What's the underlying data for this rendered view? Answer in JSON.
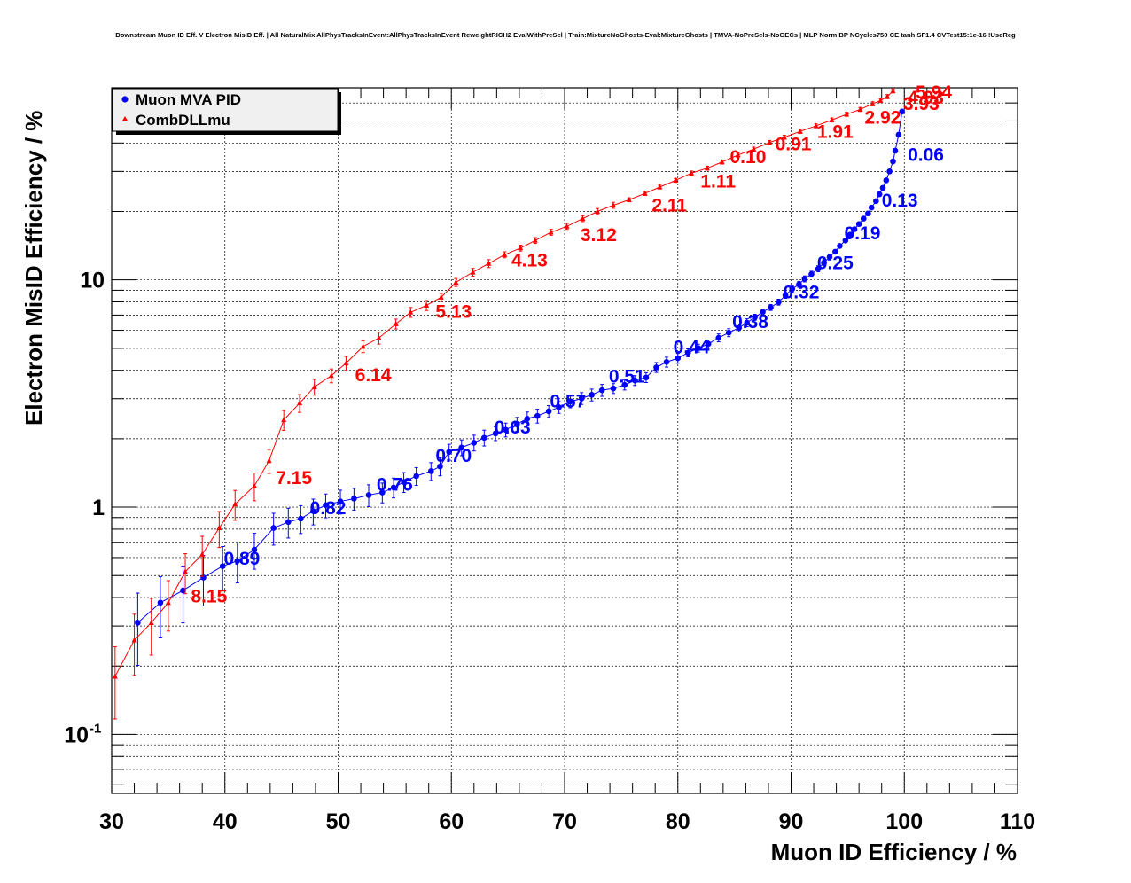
{
  "title": "Downstream Muon ID Eff. V Electron MisID Eff. | All NaturalMix AllPhysTracksInEvent:AllPhysTracksInEvent ReweightRICH2 EvalWithPreSel | Train:MixtureNoGhosts-Eval:MixtureGhosts | TMVA-NoPreSels-NoGECs | MLP Norm BP NCycles750 CE tanh SF1.4 CVTest15:1e-16 !UseReg",
  "chart_data": {
    "type": "line",
    "xlabel": "Muon ID Efficiency / %",
    "ylabel": "Electron MisID Efficiency / %",
    "xlim": [
      30,
      110
    ],
    "ylim": [
      0.055,
      70
    ],
    "yscale": "log",
    "grid": true,
    "legend_position": "top-left",
    "x_ticks": [
      "30",
      "40",
      "50",
      "60",
      "70",
      "80",
      "90",
      "100",
      "110"
    ],
    "y_ticks": [
      {
        "value": 0.1,
        "base": "10",
        "exp": "-1"
      },
      {
        "value": 1,
        "base": "1",
        "exp": ""
      },
      {
        "value": 10,
        "base": "10",
        "exp": ""
      }
    ],
    "series": [
      {
        "name": "Muon MVA PID",
        "color": "#0000ff",
        "marker": "circle",
        "points": [
          [
            32.3,
            0.31
          ],
          [
            34.3,
            0.38
          ],
          [
            36.3,
            0.43
          ],
          [
            38.1,
            0.49
          ],
          [
            39.8,
            0.55
          ],
          [
            41.1,
            0.58
          ],
          [
            42.6,
            0.65
          ],
          [
            44.3,
            0.81
          ],
          [
            45.6,
            0.86
          ],
          [
            46.7,
            0.89
          ],
          [
            47.8,
            0.96
          ],
          [
            48.9,
            1.02
          ],
          [
            50.2,
            1.06
          ],
          [
            51.4,
            1.09
          ],
          [
            52.7,
            1.13
          ],
          [
            53.9,
            1.16
          ],
          [
            54.9,
            1.22
          ],
          [
            55.8,
            1.29
          ],
          [
            56.9,
            1.37
          ],
          [
            58.2,
            1.44
          ],
          [
            59.0,
            1.51
          ],
          [
            59.8,
            1.75
          ],
          [
            60.9,
            1.83
          ],
          [
            62.0,
            1.92
          ],
          [
            62.9,
            2.02
          ],
          [
            63.9,
            2.11
          ],
          [
            64.8,
            2.19
          ],
          [
            65.8,
            2.32
          ],
          [
            66.7,
            2.45
          ],
          [
            67.6,
            2.52
          ],
          [
            68.6,
            2.64
          ],
          [
            69.5,
            2.75
          ],
          [
            70.5,
            2.91
          ],
          [
            71.5,
            3.01
          ],
          [
            72.4,
            3.12
          ],
          [
            73.3,
            3.27
          ],
          [
            74.3,
            3.33
          ],
          [
            75.3,
            3.45
          ],
          [
            76.2,
            3.61
          ],
          [
            77.2,
            3.72
          ],
          [
            78.1,
            4.12
          ],
          [
            79.0,
            4.35
          ],
          [
            80.0,
            4.52
          ],
          [
            80.9,
            4.78
          ],
          [
            81.8,
            5.01
          ],
          [
            82.7,
            5.23
          ],
          [
            83.6,
            5.56
          ],
          [
            84.5,
            5.86
          ],
          [
            85.4,
            6.15
          ],
          [
            86.1,
            6.48
          ],
          [
            86.8,
            6.85
          ],
          [
            87.5,
            7.22
          ],
          [
            88.2,
            7.56
          ],
          [
            88.9,
            7.98
          ],
          [
            89.5,
            8.55
          ],
          [
            90.1,
            9.12
          ],
          [
            90.7,
            9.56
          ],
          [
            91.2,
            10.1
          ],
          [
            91.8,
            10.6
          ],
          [
            92.4,
            11.2
          ],
          [
            92.9,
            11.9
          ],
          [
            93.4,
            12.6
          ],
          [
            93.9,
            13.3
          ],
          [
            94.3,
            14.1
          ],
          [
            94.8,
            14.9
          ],
          [
            95.2,
            15.8
          ],
          [
            95.6,
            16.7
          ],
          [
            96.0,
            17.6
          ],
          [
            96.4,
            18.6
          ],
          [
            96.8,
            19.6
          ],
          [
            97.1,
            20.8
          ],
          [
            97.5,
            22.2
          ],
          [
            97.8,
            23.8
          ],
          [
            98.1,
            25.4
          ],
          [
            98.4,
            27.4
          ],
          [
            98.7,
            30.0
          ],
          [
            99.0,
            33.2
          ],
          [
            99.2,
            37.0
          ],
          [
            99.5,
            43.5
          ],
          [
            99.8,
            55.0
          ]
        ],
        "rel_errors": [
          0.35,
          0.3,
          0.28,
          0.25,
          0.22,
          0.2,
          0.18,
          0.16,
          0.15,
          0.14,
          0.13,
          0.12,
          0.12,
          0.11,
          0.11,
          0.1,
          0.1,
          0.1,
          0.09,
          0.09,
          0.09,
          0.08,
          0.08,
          0.08,
          0.08,
          0.07,
          0.07,
          0.07,
          0.07,
          0.07,
          0.06,
          0.06,
          0.06,
          0.06,
          0.06,
          0.06,
          0.05,
          0.05,
          0.05,
          0.05,
          0.05,
          0.05,
          0.05,
          0.04,
          0.04,
          0.04,
          0.04,
          0.04,
          0.04,
          0.04,
          0.03,
          0.03,
          0.03,
          0.03,
          0.03,
          0.03,
          0.03,
          0.03,
          0.03,
          0.03,
          0.03,
          0.03,
          0.02,
          0.02,
          0.02,
          0.02,
          0.02,
          0.02,
          0.02,
          0.02,
          0.02,
          0.02,
          0.02,
          0.02,
          0.02,
          0.02,
          0.02,
          0.02,
          0.02,
          0.02
        ],
        "annotations": [
          {
            "x": 100.3,
            "y": 35.8,
            "text": "0.06"
          },
          {
            "x": 98.0,
            "y": 22.6,
            "text": "0.13"
          },
          {
            "x": 94.7,
            "y": 16.2,
            "text": "0.19"
          },
          {
            "x": 92.3,
            "y": 12.0,
            "text": "0.25"
          },
          {
            "x": 89.3,
            "y": 8.9,
            "text": "0.32"
          },
          {
            "x": 84.8,
            "y": 6.6,
            "text": "0.38"
          },
          {
            "x": 79.6,
            "y": 5.1,
            "text": "0.44"
          },
          {
            "x": 73.9,
            "y": 3.8,
            "text": "0.51"
          },
          {
            "x": 68.7,
            "y": 2.95,
            "text": "0.57"
          },
          {
            "x": 63.8,
            "y": 2.27,
            "text": "0.63"
          },
          {
            "x": 58.6,
            "y": 1.7,
            "text": "0.70"
          },
          {
            "x": 53.4,
            "y": 1.27,
            "text": "0.76"
          },
          {
            "x": 47.5,
            "y": 1.0,
            "text": "0.82"
          },
          {
            "x": 39.9,
            "y": 0.6,
            "text": "0.89"
          }
        ]
      },
      {
        "name": "CombDLLmu",
        "color": "#ff0000",
        "marker": "triangle",
        "points": [
          [
            30.3,
            0.18
          ],
          [
            32.0,
            0.26
          ],
          [
            33.5,
            0.31
          ],
          [
            35.0,
            0.38
          ],
          [
            36.5,
            0.52
          ],
          [
            38.0,
            0.62
          ],
          [
            39.5,
            0.81
          ],
          [
            40.9,
            1.03
          ],
          [
            42.6,
            1.24
          ],
          [
            43.9,
            1.6
          ],
          [
            45.2,
            2.42
          ],
          [
            46.6,
            2.87
          ],
          [
            47.9,
            3.38
          ],
          [
            49.4,
            3.79
          ],
          [
            50.7,
            4.3
          ],
          [
            52.2,
            5.09
          ],
          [
            53.6,
            5.55
          ],
          [
            55.1,
            6.4
          ],
          [
            56.4,
            7.2
          ],
          [
            57.8,
            7.72
          ],
          [
            59.1,
            8.38
          ],
          [
            60.4,
            9.75
          ],
          [
            61.9,
            10.8
          ],
          [
            63.3,
            11.8
          ],
          [
            64.7,
            12.9
          ],
          [
            66.1,
            13.8
          ],
          [
            67.4,
            14.9
          ],
          [
            68.8,
            16.2
          ],
          [
            70.2,
            17.2
          ],
          [
            71.6,
            18.6
          ],
          [
            72.9,
            20.0
          ],
          [
            74.3,
            21.3
          ],
          [
            75.7,
            22.5
          ],
          [
            77.1,
            24.0
          ],
          [
            78.4,
            25.6
          ],
          [
            79.8,
            27.4
          ],
          [
            81.2,
            29.5
          ],
          [
            82.6,
            31.0
          ],
          [
            83.9,
            33.0
          ],
          [
            85.3,
            35.4
          ],
          [
            86.7,
            37.6
          ],
          [
            88.1,
            40.2
          ],
          [
            89.4,
            42.4
          ],
          [
            90.8,
            45.0
          ],
          [
            92.2,
            47.6
          ],
          [
            93.6,
            50.5
          ],
          [
            94.9,
            53.5
          ],
          [
            96.1,
            56.2
          ],
          [
            97.2,
            59.5
          ],
          [
            97.9,
            61.5
          ],
          [
            98.5,
            64.0
          ],
          [
            99.0,
            67.8
          ]
        ],
        "rel_errors": [
          0.35,
          0.3,
          0.28,
          0.25,
          0.2,
          0.2,
          0.18,
          0.15,
          0.14,
          0.12,
          0.1,
          0.09,
          0.08,
          0.07,
          0.07,
          0.06,
          0.06,
          0.05,
          0.05,
          0.05,
          0.04,
          0.04,
          0.04,
          0.04,
          0.03,
          0.03,
          0.03,
          0.03,
          0.03,
          0.03,
          0.03,
          0.03,
          0.02,
          0.02,
          0.02,
          0.02,
          0.02,
          0.02,
          0.02,
          0.02,
          0.02,
          0.02,
          0.02,
          0.02,
          0.02,
          0.02,
          0.02,
          0.02,
          0.02,
          0.02,
          0.02,
          0.02
        ],
        "annotations": [
          {
            "x": 101.0,
            "y": 67.5,
            "text": "5.94"
          },
          {
            "x": 100.3,
            "y": 64.1,
            "text": "4.93"
          },
          {
            "x": 99.9,
            "y": 60.2,
            "text": "3.93"
          },
          {
            "x": 96.5,
            "y": 52.2,
            "text": "2.92"
          },
          {
            "x": 92.3,
            "y": 45.2,
            "text": "1.91"
          },
          {
            "x": 88.6,
            "y": 40.0,
            "text": "0.91"
          },
          {
            "x": 84.6,
            "y": 35.1,
            "text": "0.10"
          },
          {
            "x": 82.0,
            "y": 27.4,
            "text": "1.11"
          },
          {
            "x": 77.7,
            "y": 21.5,
            "text": "2.11"
          },
          {
            "x": 71.4,
            "y": 15.9,
            "text": "3.12"
          },
          {
            "x": 65.3,
            "y": 12.3,
            "text": "4.13"
          },
          {
            "x": 58.6,
            "y": 7.3,
            "text": "5.13"
          },
          {
            "x": 51.5,
            "y": 3.85,
            "text": "6.14"
          },
          {
            "x": 44.5,
            "y": 1.36,
            "text": "7.15"
          },
          {
            "x": 37.0,
            "y": 0.41,
            "text": "8.15"
          }
        ]
      }
    ]
  }
}
